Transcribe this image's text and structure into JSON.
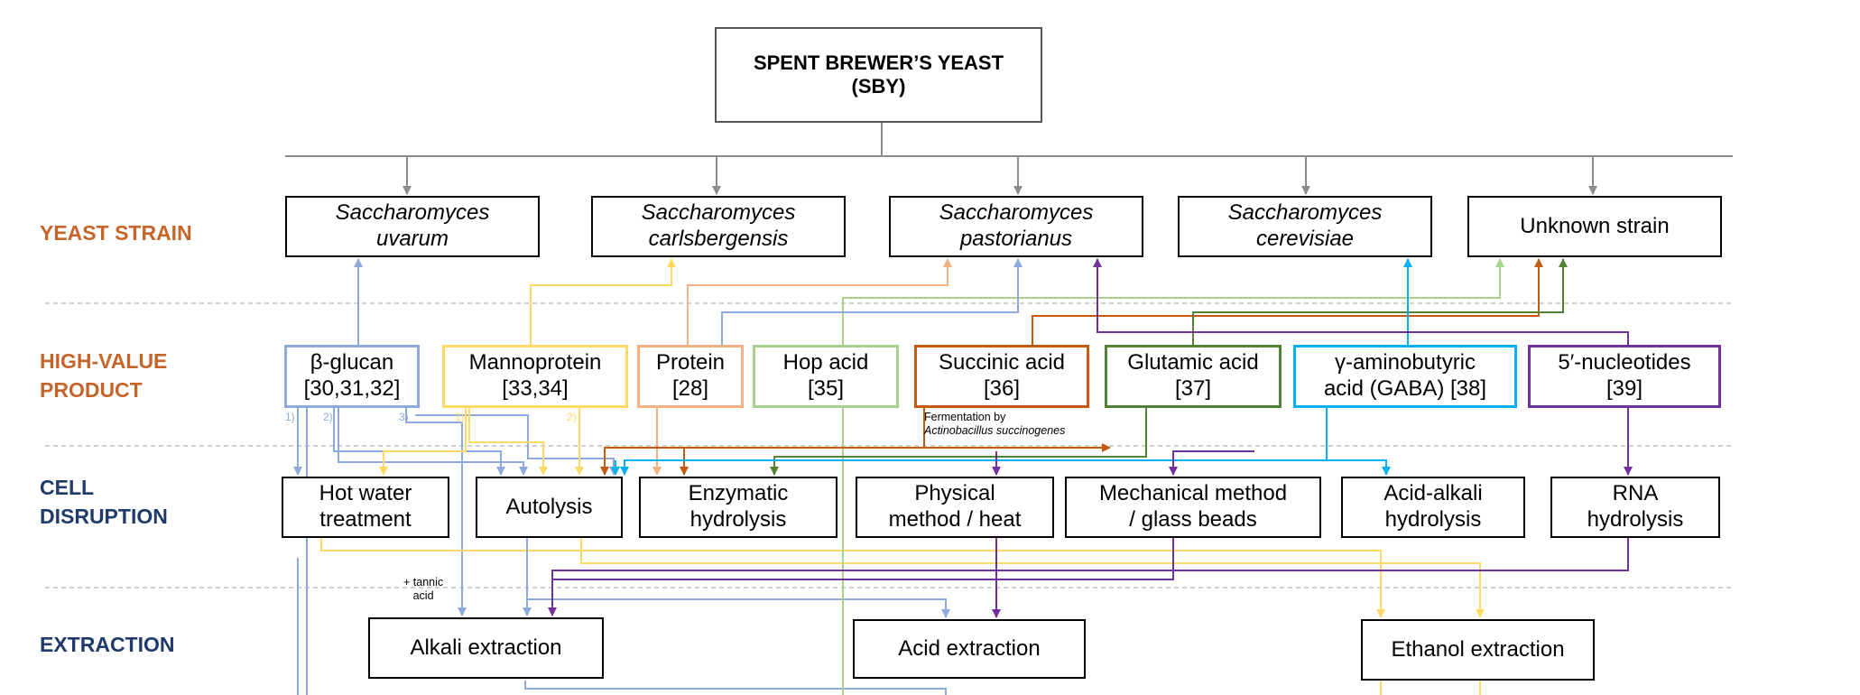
{
  "title": {
    "line1": "SPENT BREWER’S YEAST",
    "line2": "(SBY)"
  },
  "row_labels": {
    "strain": {
      "lines": [
        "YEAST STRAIN"
      ],
      "color": "#C5652A"
    },
    "product": {
      "lines": [
        "HIGH-VALUE",
        "PRODUCT"
      ],
      "color": "#C5652A"
    },
    "disruption": {
      "lines": [
        "CELL",
        "DISRUPTION"
      ],
      "color": "#1F3A6B"
    },
    "extraction": {
      "lines": [
        "EXTRACTION"
      ],
      "color": "#1F3A6B"
    }
  },
  "strains": [
    {
      "line1": "Saccharomyces",
      "line2": "uvarum"
    },
    {
      "line1": "Saccharomyces",
      "line2": "carlsbergensis"
    },
    {
      "line1": "Saccharomyces",
      "line2": "pastorianus"
    },
    {
      "line1": "Saccharomyces",
      "line2": "cerevisiae"
    },
    {
      "line1": "Unknown strain",
      "line2": ""
    }
  ],
  "products": [
    {
      "line1": "β-glucan",
      "line2": "[30,31,32]",
      "color": "#8EA9DB"
    },
    {
      "line1": "Mannoprotein",
      "line2": "[33,34]",
      "color": "#FFD966"
    },
    {
      "line1": "Protein",
      "line2": "[28]",
      "color": "#F4B183"
    },
    {
      "line1": "Hop acid",
      "line2": "[35]",
      "color": "#A9D18E"
    },
    {
      "line1": "Succinic acid",
      "line2": "[36]",
      "color": "#C55A11"
    },
    {
      "line1": "Glutamic acid",
      "line2": "[37]",
      "color": "#548235"
    },
    {
      "line1": "γ-aminobutyric",
      "line2": "acid (GABA) [38]",
      "color": "#00B0F0"
    },
    {
      "line1": "5′-nucleotides",
      "line2": "[39]",
      "color": "#7030A0"
    }
  ],
  "disruption": [
    {
      "line1": "Hot water",
      "line2": "treatment"
    },
    {
      "line1": "Autolysis",
      "line2": ""
    },
    {
      "line1": "Enzymatic",
      "line2": "hydrolysis"
    },
    {
      "line1": "Physical",
      "line2": "method / heat"
    },
    {
      "line1": "Mechanical method",
      "line2": "/ glass beads"
    },
    {
      "line1": "Acid-alkali",
      "line2": "hydrolysis"
    },
    {
      "line1": "RNA",
      "line2": "hydrolysis"
    }
  ],
  "extraction": [
    {
      "label": "Alkali extraction"
    },
    {
      "label": "Acid extraction"
    },
    {
      "label": "Ethanol extraction"
    }
  ],
  "notes": {
    "fermentation_line1": "Fermentation by",
    "fermentation_line2": "Actinobacillus succinogenes",
    "tannic_line1": "+ tannic",
    "tannic_line2": "acid",
    "glucan_path1": "1)",
    "glucan_path2": "2)",
    "glucan_path3": "3)",
    "manno_path1": "1)",
    "manno_path2": "2)"
  },
  "colors": {
    "trunk": "#8C8C8C",
    "separator": "#BFBFBF"
  }
}
